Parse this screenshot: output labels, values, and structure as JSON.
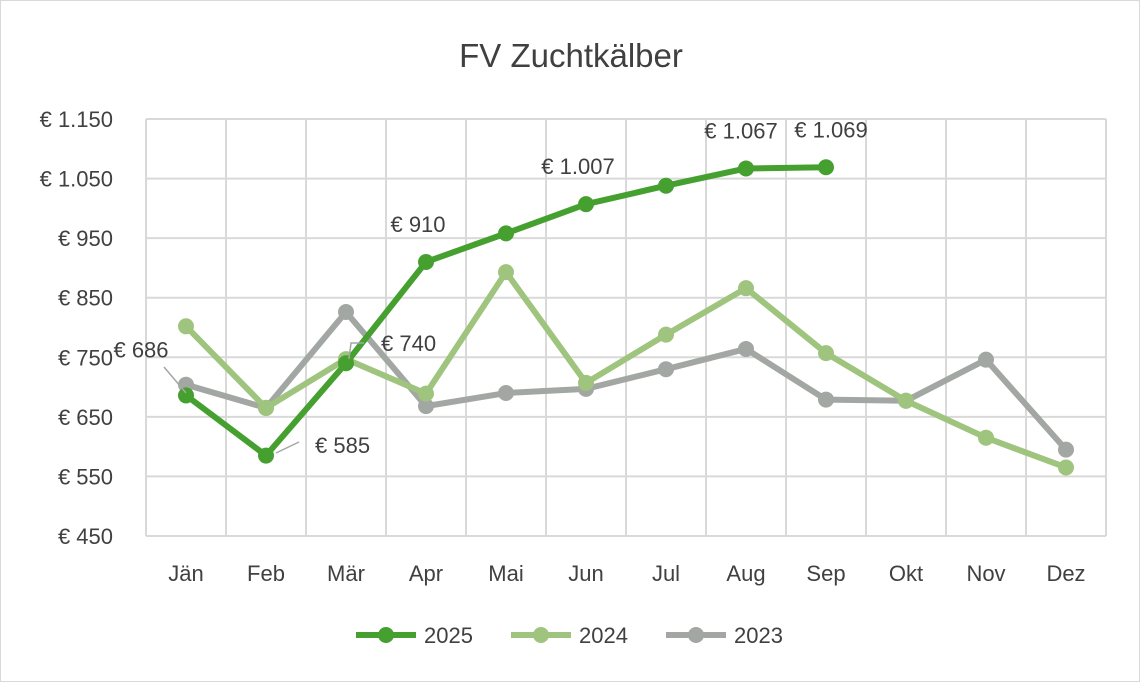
{
  "chart_data": {
    "type": "line",
    "title": "FV Zuchtkälber",
    "categories": [
      "Jän",
      "Feb",
      "Mär",
      "Apr",
      "Mai",
      "Jun",
      "Jul",
      "Aug",
      "Sep",
      "Okt",
      "Nov",
      "Dez"
    ],
    "ylim": [
      450,
      1150
    ],
    "yticks": [
      450,
      550,
      650,
      750,
      850,
      950,
      1050,
      1150
    ],
    "ytick_labels": [
      "€ 450",
      "€ 550",
      "€ 650",
      "€ 750",
      "€ 850",
      "€ 950",
      "€ 1.050",
      "€ 1.150"
    ],
    "grid": true,
    "legend": "bottom",
    "series": [
      {
        "name": "2025",
        "color": "#46a030",
        "values": [
          686,
          585,
          740,
          910,
          958,
          1007,
          1038,
          1067,
          1069,
          null,
          null,
          null
        ],
        "labels": {
          "0": "€ 686",
          "1": "€ 585",
          "2": "€ 740",
          "3": "€ 910",
          "5": "€ 1.007",
          "7": "€ 1.067",
          "8": "€ 1.069"
        }
      },
      {
        "name": "2024",
        "color": "#9fc47e",
        "values": [
          802,
          665,
          747,
          689,
          893,
          707,
          788,
          866,
          757,
          677,
          615,
          565
        ]
      },
      {
        "name": "2023",
        "color": "#a3a7a3",
        "values": [
          704,
          665,
          826,
          668,
          690,
          697,
          730,
          764,
          679,
          677,
          746,
          595
        ]
      }
    ]
  }
}
